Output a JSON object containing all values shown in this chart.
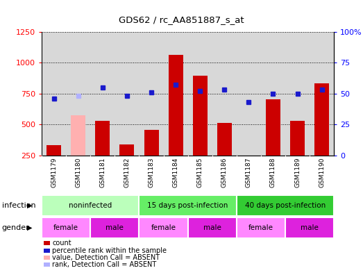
{
  "title": "GDS62 / rc_AA851887_s_at",
  "samples": [
    "GSM1179",
    "GSM1180",
    "GSM1181",
    "GSM1182",
    "GSM1183",
    "GSM1184",
    "GSM1185",
    "GSM1186",
    "GSM1187",
    "GSM1188",
    "GSM1189",
    "GSM1190"
  ],
  "counts": [
    330,
    575,
    530,
    340,
    455,
    1060,
    895,
    510,
    250,
    705,
    530,
    830
  ],
  "counts_absent": [
    false,
    true,
    false,
    false,
    false,
    false,
    false,
    false,
    false,
    false,
    false,
    false
  ],
  "percentile_ranks": [
    46,
    48,
    55,
    48,
    51,
    57,
    52,
    53,
    43,
    50,
    50,
    53
  ],
  "ranks_absent": [
    false,
    true,
    false,
    false,
    false,
    false,
    false,
    false,
    false,
    false,
    false,
    false
  ],
  "ylim_left": [
    250,
    1250
  ],
  "ylim_right": [
    0,
    100
  ],
  "yticks_left": [
    250,
    500,
    750,
    1000,
    1250
  ],
  "yticks_right": [
    0,
    25,
    50,
    75,
    100
  ],
  "bar_color_normal": "#cc0000",
  "bar_color_absent": "#ffb0b0",
  "dot_color_normal": "#1a1acc",
  "dot_color_absent": "#b0b0ff",
  "infection_groups": [
    {
      "label": "noninfected",
      "start": 0,
      "end": 3
    },
    {
      "label": "15 days post-infection",
      "start": 4,
      "end": 7
    },
    {
      "label": "40 days post-infection",
      "start": 8,
      "end": 11
    }
  ],
  "infection_colors": [
    "#bbffbb",
    "#66ee66",
    "#33cc33"
  ],
  "gender_groups": [
    {
      "label": "female",
      "start": 0,
      "end": 1
    },
    {
      "label": "male",
      "start": 2,
      "end": 3
    },
    {
      "label": "female",
      "start": 4,
      "end": 5
    },
    {
      "label": "male",
      "start": 6,
      "end": 7
    },
    {
      "label": "female",
      "start": 8,
      "end": 9
    },
    {
      "label": "male",
      "start": 10,
      "end": 11
    }
  ],
  "female_color": "#ff88ff",
  "male_color": "#dd22dd",
  "legend_colors": [
    "#cc0000",
    "#1a1acc",
    "#ffb0b0",
    "#b0b0ff"
  ],
  "legend_labels": [
    "count",
    "percentile rank within the sample",
    "value, Detection Call = ABSENT",
    "rank, Detection Call = ABSENT"
  ],
  "infection_label": "infection",
  "gender_label": "gender",
  "chart_bg": "#d8d8d8",
  "fig_bg": "#ffffff"
}
